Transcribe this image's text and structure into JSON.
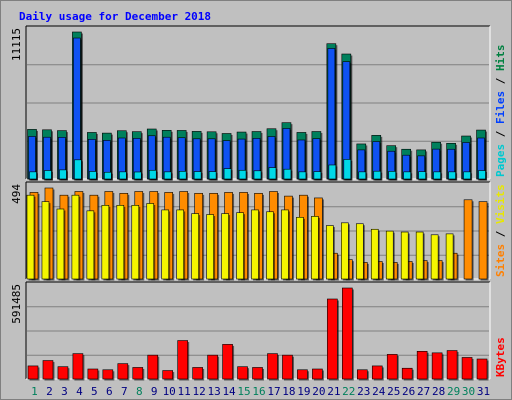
{
  "chart_data": {
    "type": "bar",
    "title": "Daily usage for December 2018",
    "categories": [
      "1",
      "2",
      "3",
      "4",
      "5",
      "6",
      "7",
      "8",
      "9",
      "10",
      "11",
      "12",
      "13",
      "14",
      "15",
      "16",
      "17",
      "18",
      "19",
      "20",
      "21",
      "22",
      "23",
      "24",
      "25",
      "26",
      "27",
      "28",
      "29",
      "30",
      "31"
    ],
    "weekend_days": [
      "1",
      "8",
      "15",
      "16",
      "22",
      "29",
      "30"
    ],
    "panels": [
      {
        "name": "requests",
        "scale_label": "11115",
        "ylim": [
          0,
          11115
        ],
        "side_label": [
          {
            "text": "Pages",
            "color": "#00c8d0"
          },
          {
            "text": " / ",
            "color": "#000000"
          },
          {
            "text": "Files",
            "color": "#0040ff"
          },
          {
            "text": " / ",
            "color": "#000000"
          },
          {
            "text": "Hits",
            "color": "#008040"
          }
        ],
        "series": [
          {
            "name": "Hits",
            "color": "#00805c",
            "values": [
              3750,
              3720,
              3660,
              11115,
              3520,
              3470,
              3650,
              3580,
              3780,
              3680,
              3670,
              3600,
              3570,
              3440,
              3550,
              3590,
              3800,
              4260,
              3520,
              3590,
              10230,
              9450,
              2650,
              3300,
              2520,
              2250,
              2200,
              2780,
              2700,
              3250,
              3700
            ]
          },
          {
            "name": "Files",
            "color": "#0f52f2",
            "values": [
              3220,
              3160,
              3150,
              10660,
              3000,
              2920,
              3100,
              3070,
              3270,
              3160,
              3120,
              3040,
              3040,
              2900,
              3020,
              3070,
              3210,
              3820,
              2950,
              3050,
              9870,
              8870,
              2200,
              2830,
              2100,
              1800,
              1750,
              2260,
              2250,
              2760,
              3100
            ]
          },
          {
            "name": "Pages",
            "color": "#00d8e8",
            "values": [
              540,
              640,
              690,
              1450,
              570,
              510,
              540,
              530,
              660,
              540,
              580,
              560,
              560,
              780,
              660,
              620,
              860,
              740,
              540,
              560,
              1060,
              1480,
              540,
              590,
              580,
              540,
              560,
              540,
              540,
              540,
              640
            ]
          }
        ]
      },
      {
        "name": "visits",
        "scale_label": "494",
        "ylim": [
          0,
          494
        ],
        "side_label": [
          {
            "text": "Sites",
            "color": "#ff8000"
          },
          {
            "text": " / ",
            "color": "#000000"
          },
          {
            "text": "Visits",
            "color": "#e8e800"
          }
        ],
        "series": [
          {
            "name": "Visits",
            "color": "#ff8c00",
            "values": [
              470,
              494,
              455,
              475,
              455,
              475,
              465,
              475,
              475,
              470,
              475,
              465,
              465,
              470,
              470,
              465,
              475,
              450,
              455,
              440,
              140,
              105,
              90,
              95,
              90,
              95,
              100,
              100,
              140,
              430,
              420
            ]
          },
          {
            "name": "Sites",
            "color": "#f5f500",
            "values": [
              455,
              420,
              380,
              455,
              370,
              400,
              400,
              400,
              410,
              375,
              375,
              355,
              350,
              355,
              360,
              375,
              365,
              375,
              335,
              340,
              290,
              305,
              300,
              270,
              260,
              255,
              255,
              240,
              245,
              0,
              0
            ]
          }
        ]
      },
      {
        "name": "kbytes",
        "scale_label": "591485",
        "ylim": [
          0,
          591485
        ],
        "side_label": [
          {
            "text": "KBytes",
            "color": "#ff0000"
          }
        ],
        "series": [
          {
            "name": "KBytes",
            "color": "#ff0000",
            "values": [
              85000,
              120000,
              80000,
              165000,
              65000,
              60000,
              100000,
              75000,
              155000,
              55000,
              250000,
              75000,
              155000,
              225000,
              80000,
              75000,
              165000,
              155000,
              60000,
              65000,
              520000,
              591485,
              60000,
              85000,
              160000,
              70000,
              180000,
              170000,
              185000,
              140000,
              130000
            ]
          }
        ]
      }
    ]
  }
}
